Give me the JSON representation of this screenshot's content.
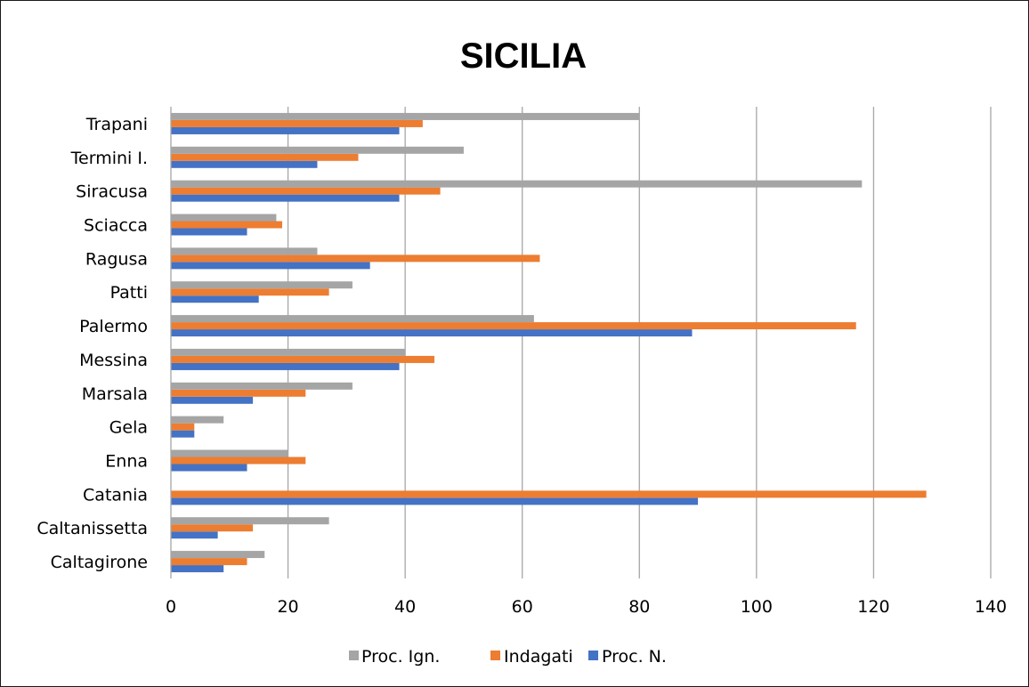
{
  "chart_data": {
    "type": "bar",
    "orientation": "horizontal",
    "title": "SICILIA",
    "categories": [
      "Caltagirone",
      "Caltanissetta",
      "Catania",
      "Enna",
      "Gela",
      "Marsala",
      "Messina",
      "Palermo",
      "Patti",
      "Ragusa",
      "Sciacca",
      "Siracusa",
      "Termini I.",
      "Trapani"
    ],
    "series": [
      {
        "name": "Proc. N.",
        "color": "#4472C4",
        "values": [
          9,
          8,
          90,
          13,
          4,
          14,
          39,
          89,
          15,
          34,
          13,
          39,
          25,
          39
        ]
      },
      {
        "name": "Indagati",
        "color": "#ED7D31",
        "values": [
          13,
          14,
          129,
          23,
          4,
          23,
          45,
          117,
          27,
          63,
          19,
          46,
          32,
          43
        ]
      },
      {
        "name": "Proc. Ign.",
        "color": "#A5A5A5",
        "values": [
          16,
          27,
          0,
          20,
          9,
          31,
          40,
          62,
          31,
          25,
          18,
          118,
          50,
          80
        ]
      }
    ],
    "legend_order": [
      "Proc. Ign.",
      "Indagati",
      "Proc. N."
    ],
    "xlim": [
      0,
      140
    ],
    "xticks": [
      0,
      20,
      40,
      60,
      80,
      100,
      120,
      140
    ],
    "grid": true,
    "legend_position": "bottom"
  }
}
